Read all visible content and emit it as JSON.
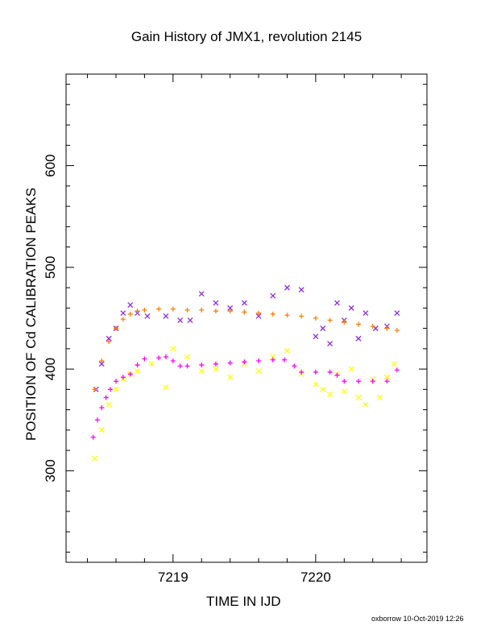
{
  "chart_data": {
    "type": "scatter",
    "title": "Gain History of JMX1, revolution 2145",
    "xlabel": "TIME IN IJD",
    "ylabel": "POSITION OF Cd CALIBRATION PEAKS",
    "xlim": [
      7218.25,
      7220.78
    ],
    "ylim": [
      210,
      690
    ],
    "xticks": [
      7219,
      7220
    ],
    "yticks": [
      300,
      400,
      500,
      600
    ],
    "grid": false,
    "series": [
      {
        "marker": "x",
        "color": "#8a2be2",
        "points": [
          [
            7218.46,
            380
          ],
          [
            7218.5,
            405
          ],
          [
            7218.55,
            430
          ],
          [
            7218.6,
            440
          ],
          [
            7218.65,
            455
          ],
          [
            7218.7,
            463
          ],
          [
            7218.75,
            455
          ],
          [
            7218.82,
            452
          ],
          [
            7218.95,
            452
          ],
          [
            7219.05,
            448
          ],
          [
            7219.12,
            448
          ],
          [
            7219.2,
            474
          ],
          [
            7219.3,
            465
          ],
          [
            7219.4,
            460
          ],
          [
            7219.5,
            465
          ],
          [
            7219.6,
            452
          ],
          [
            7219.7,
            472
          ],
          [
            7219.8,
            480
          ],
          [
            7219.9,
            478
          ],
          [
            7220.0,
            432
          ],
          [
            7220.05,
            440
          ],
          [
            7220.1,
            425
          ],
          [
            7220.15,
            465
          ],
          [
            7220.2,
            448
          ],
          [
            7220.25,
            460
          ],
          [
            7220.3,
            430
          ],
          [
            7220.35,
            455
          ],
          [
            7220.42,
            440
          ],
          [
            7220.5,
            442
          ],
          [
            7220.57,
            455
          ]
        ]
      },
      {
        "marker": "+",
        "color": "#ff7f00",
        "points": [
          [
            7218.45,
            380
          ],
          [
            7218.5,
            408
          ],
          [
            7218.55,
            427
          ],
          [
            7218.6,
            440
          ],
          [
            7218.65,
            449
          ],
          [
            7218.7,
            454
          ],
          [
            7218.75,
            457
          ],
          [
            7218.8,
            458
          ],
          [
            7218.9,
            459
          ],
          [
            7219.0,
            459
          ],
          [
            7219.1,
            458
          ],
          [
            7219.2,
            458
          ],
          [
            7219.3,
            457
          ],
          [
            7219.4,
            457
          ],
          [
            7219.5,
            456
          ],
          [
            7219.6,
            455
          ],
          [
            7219.7,
            454
          ],
          [
            7219.8,
            453
          ],
          [
            7219.9,
            452
          ],
          [
            7220.0,
            450
          ],
          [
            7220.1,
            448
          ],
          [
            7220.2,
            446
          ],
          [
            7220.3,
            444
          ],
          [
            7220.4,
            442
          ],
          [
            7220.5,
            440
          ],
          [
            7220.57,
            438
          ]
        ]
      },
      {
        "marker": "x",
        "color": "#ffff00",
        "points": [
          [
            7218.45,
            312
          ],
          [
            7218.5,
            340
          ],
          [
            7218.55,
            365
          ],
          [
            7218.6,
            380
          ],
          [
            7218.65,
            390
          ],
          [
            7218.7,
            395
          ],
          [
            7218.75,
            398
          ],
          [
            7218.85,
            405
          ],
          [
            7218.95,
            382
          ],
          [
            7219.0,
            420
          ],
          [
            7219.1,
            412
          ],
          [
            7219.2,
            398
          ],
          [
            7219.3,
            400
          ],
          [
            7219.4,
            392
          ],
          [
            7219.5,
            405
          ],
          [
            7219.6,
            398
          ],
          [
            7219.7,
            412
          ],
          [
            7219.8,
            418
          ],
          [
            7219.9,
            395
          ],
          [
            7220.0,
            385
          ],
          [
            7220.05,
            380
          ],
          [
            7220.1,
            375
          ],
          [
            7220.15,
            395
          ],
          [
            7220.2,
            378
          ],
          [
            7220.25,
            400
          ],
          [
            7220.3,
            372
          ],
          [
            7220.35,
            365
          ],
          [
            7220.4,
            390
          ],
          [
            7220.45,
            372
          ],
          [
            7220.5,
            392
          ],
          [
            7220.55,
            405
          ]
        ]
      },
      {
        "marker": "+",
        "color": "#ff00ff",
        "points": [
          [
            7218.44,
            333
          ],
          [
            7218.47,
            350
          ],
          [
            7218.5,
            362
          ],
          [
            7218.53,
            372
          ],
          [
            7218.56,
            380
          ],
          [
            7218.6,
            388
          ],
          [
            7218.65,
            392
          ],
          [
            7218.7,
            395
          ],
          [
            7218.75,
            404
          ],
          [
            7218.8,
            410
          ],
          [
            7218.9,
            411
          ],
          [
            7218.95,
            412
          ],
          [
            7219.0,
            408
          ],
          [
            7219.05,
            403
          ],
          [
            7219.1,
            403
          ],
          [
            7219.2,
            404
          ],
          [
            7219.3,
            405
          ],
          [
            7219.4,
            406
          ],
          [
            7219.5,
            407
          ],
          [
            7219.6,
            408
          ],
          [
            7219.7,
            409
          ],
          [
            7219.78,
            409
          ],
          [
            7219.85,
            403
          ],
          [
            7219.9,
            397
          ],
          [
            7220.0,
            397
          ],
          [
            7220.1,
            397
          ],
          [
            7220.15,
            394
          ],
          [
            7220.2,
            388
          ],
          [
            7220.3,
            388
          ],
          [
            7220.4,
            388
          ],
          [
            7220.5,
            388
          ],
          [
            7220.57,
            399
          ]
        ]
      }
    ]
  },
  "footer": {
    "stamp": "oxborrow 10-Oct-2019 12:26"
  }
}
